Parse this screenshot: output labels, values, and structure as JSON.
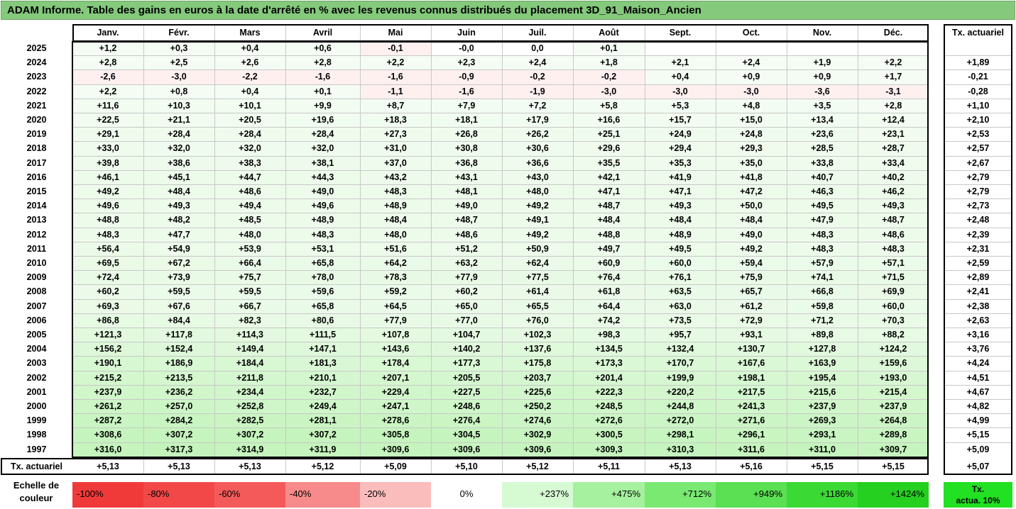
{
  "title": "ADAM Informe. Table des gains en euros à la date d'arrêté en % avec les revenus connus distribués du placement 3D_91_Maison_Ancien",
  "months": [
    "Janv.",
    "Févr.",
    "Mars",
    "Avril",
    "Mai",
    "Juin",
    "Juil.",
    "Août",
    "Sept.",
    "Oct.",
    "Nov.",
    "Déc."
  ],
  "tx_header": "Tx. actuariel",
  "rows": [
    {
      "year": "2025",
      "vals": [
        "+1,2",
        "+0,3",
        "+0,4",
        "+0,6",
        "-0,1",
        "-0,0",
        "0,0",
        "+0,1",
        "",
        "",
        "",
        ""
      ],
      "tx": ""
    },
    {
      "year": "2024",
      "vals": [
        "+2,8",
        "+2,5",
        "+2,6",
        "+2,8",
        "+2,2",
        "+2,3",
        "+2,4",
        "+1,8",
        "+2,1",
        "+2,4",
        "+1,9",
        "+2,2"
      ],
      "tx": "+1,89"
    },
    {
      "year": "2023",
      "vals": [
        "-2,6",
        "-3,0",
        "-2,2",
        "-1,6",
        "-1,6",
        "-0,9",
        "-0,2",
        "-0,2",
        "+0,4",
        "+0,9",
        "+0,9",
        "+1,7"
      ],
      "tx": "-0,21"
    },
    {
      "year": "2022",
      "vals": [
        "+2,2",
        "+0,8",
        "+0,4",
        "+0,1",
        "-1,1",
        "-1,6",
        "-1,9",
        "-3,0",
        "-3,0",
        "-3,0",
        "-3,6",
        "-3,1"
      ],
      "tx": "-0,28"
    },
    {
      "year": "2021",
      "vals": [
        "+11,6",
        "+10,3",
        "+10,1",
        "+9,9",
        "+8,7",
        "+7,9",
        "+7,2",
        "+5,8",
        "+5,3",
        "+4,8",
        "+3,5",
        "+2,8"
      ],
      "tx": "+1,10"
    },
    {
      "year": "2020",
      "vals": [
        "+22,5",
        "+21,1",
        "+20,5",
        "+19,6",
        "+18,3",
        "+18,1",
        "+17,9",
        "+16,6",
        "+15,7",
        "+15,0",
        "+13,4",
        "+12,4"
      ],
      "tx": "+2,10"
    },
    {
      "year": "2019",
      "vals": [
        "+29,1",
        "+28,4",
        "+28,4",
        "+28,4",
        "+27,3",
        "+26,8",
        "+26,2",
        "+25,1",
        "+24,9",
        "+24,8",
        "+23,6",
        "+23,1"
      ],
      "tx": "+2,53"
    },
    {
      "year": "2018",
      "vals": [
        "+33,0",
        "+32,0",
        "+32,0",
        "+32,0",
        "+31,0",
        "+30,8",
        "+30,6",
        "+29,6",
        "+29,4",
        "+29,3",
        "+28,5",
        "+28,7"
      ],
      "tx": "+2,57"
    },
    {
      "year": "2017",
      "vals": [
        "+39,8",
        "+38,6",
        "+38,3",
        "+38,1",
        "+37,0",
        "+36,8",
        "+36,6",
        "+35,5",
        "+35,3",
        "+35,0",
        "+33,8",
        "+33,4"
      ],
      "tx": "+2,67"
    },
    {
      "year": "2016",
      "vals": [
        "+46,1",
        "+45,1",
        "+44,7",
        "+44,3",
        "+43,2",
        "+43,1",
        "+43,0",
        "+42,1",
        "+41,9",
        "+41,8",
        "+40,7",
        "+40,2"
      ],
      "tx": "+2,79"
    },
    {
      "year": "2015",
      "vals": [
        "+49,2",
        "+48,4",
        "+48,6",
        "+49,0",
        "+48,3",
        "+48,1",
        "+48,0",
        "+47,1",
        "+47,1",
        "+47,2",
        "+46,3",
        "+46,2"
      ],
      "tx": "+2,79"
    },
    {
      "year": "2014",
      "vals": [
        "+49,6",
        "+49,3",
        "+49,4",
        "+49,6",
        "+48,9",
        "+49,0",
        "+49,2",
        "+48,7",
        "+49,3",
        "+50,0",
        "+49,5",
        "+49,3"
      ],
      "tx": "+2,73"
    },
    {
      "year": "2013",
      "vals": [
        "+48,8",
        "+48,2",
        "+48,5",
        "+48,9",
        "+48,4",
        "+48,7",
        "+49,1",
        "+48,4",
        "+48,4",
        "+48,4",
        "+47,9",
        "+48,7"
      ],
      "tx": "+2,48"
    },
    {
      "year": "2012",
      "vals": [
        "+48,3",
        "+47,7",
        "+48,0",
        "+48,3",
        "+48,0",
        "+48,6",
        "+49,2",
        "+48,8",
        "+48,9",
        "+49,0",
        "+48,3",
        "+48,6"
      ],
      "tx": "+2,39"
    },
    {
      "year": "2011",
      "vals": [
        "+56,4",
        "+54,9",
        "+53,9",
        "+53,1",
        "+51,6",
        "+51,2",
        "+50,9",
        "+49,7",
        "+49,5",
        "+49,2",
        "+48,3",
        "+48,3"
      ],
      "tx": "+2,31"
    },
    {
      "year": "2010",
      "vals": [
        "+69,5",
        "+67,2",
        "+66,4",
        "+65,8",
        "+64,2",
        "+63,2",
        "+62,4",
        "+60,9",
        "+60,0",
        "+59,4",
        "+57,9",
        "+57,1"
      ],
      "tx": "+2,59"
    },
    {
      "year": "2009",
      "vals": [
        "+72,4",
        "+73,9",
        "+75,7",
        "+78,0",
        "+78,3",
        "+77,9",
        "+77,5",
        "+76,4",
        "+76,1",
        "+75,9",
        "+74,1",
        "+71,5"
      ],
      "tx": "+2,89"
    },
    {
      "year": "2008",
      "vals": [
        "+60,2",
        "+59,5",
        "+59,5",
        "+59,6",
        "+59,2",
        "+60,2",
        "+61,4",
        "+61,8",
        "+63,5",
        "+65,7",
        "+66,8",
        "+69,9"
      ],
      "tx": "+2,41"
    },
    {
      "year": "2007",
      "vals": [
        "+69,3",
        "+67,6",
        "+66,7",
        "+65,8",
        "+64,5",
        "+65,0",
        "+65,5",
        "+64,4",
        "+63,0",
        "+61,2",
        "+59,8",
        "+60,0"
      ],
      "tx": "+2,38"
    },
    {
      "year": "2006",
      "vals": [
        "+86,8",
        "+84,4",
        "+82,3",
        "+80,6",
        "+77,9",
        "+77,0",
        "+76,0",
        "+74,2",
        "+73,5",
        "+72,9",
        "+71,2",
        "+70,3"
      ],
      "tx": "+2,63"
    },
    {
      "year": "2005",
      "vals": [
        "+121,3",
        "+117,8",
        "+114,3",
        "+111,5",
        "+107,8",
        "+104,7",
        "+102,3",
        "+98,3",
        "+95,7",
        "+93,1",
        "+89,8",
        "+88,2"
      ],
      "tx": "+3,16"
    },
    {
      "year": "2004",
      "vals": [
        "+156,2",
        "+152,4",
        "+149,4",
        "+147,1",
        "+143,6",
        "+140,2",
        "+137,6",
        "+134,5",
        "+132,4",
        "+130,7",
        "+127,8",
        "+124,2"
      ],
      "tx": "+3,76"
    },
    {
      "year": "2003",
      "vals": [
        "+190,1",
        "+186,9",
        "+184,4",
        "+181,3",
        "+178,4",
        "+177,3",
        "+175,8",
        "+173,3",
        "+170,7",
        "+167,6",
        "+163,9",
        "+159,6"
      ],
      "tx": "+4,24"
    },
    {
      "year": "2002",
      "vals": [
        "+215,2",
        "+213,5",
        "+211,8",
        "+210,1",
        "+207,1",
        "+205,5",
        "+203,7",
        "+201,4",
        "+199,9",
        "+198,1",
        "+195,4",
        "+193,0"
      ],
      "tx": "+4,51"
    },
    {
      "year": "2001",
      "vals": [
        "+237,9",
        "+236,2",
        "+234,4",
        "+232,7",
        "+229,4",
        "+227,5",
        "+225,6",
        "+222,3",
        "+220,2",
        "+217,5",
        "+215,6",
        "+215,4"
      ],
      "tx": "+4,67"
    },
    {
      "year": "2000",
      "vals": [
        "+261,2",
        "+257,0",
        "+252,8",
        "+249,4",
        "+247,1",
        "+248,6",
        "+250,2",
        "+248,5",
        "+244,8",
        "+241,3",
        "+237,9",
        "+237,9"
      ],
      "tx": "+4,82"
    },
    {
      "year": "1999",
      "vals": [
        "+287,2",
        "+284,2",
        "+282,5",
        "+281,1",
        "+278,6",
        "+276,4",
        "+274,6",
        "+272,6",
        "+272,0",
        "+271,6",
        "+269,3",
        "+264,8"
      ],
      "tx": "+4,99"
    },
    {
      "year": "1998",
      "vals": [
        "+308,6",
        "+307,2",
        "+307,2",
        "+307,2",
        "+305,8",
        "+304,5",
        "+302,9",
        "+300,5",
        "+298,1",
        "+296,1",
        "+293,1",
        "+289,8"
      ],
      "tx": "+5,15"
    },
    {
      "year": "1997",
      "vals": [
        "+316,0",
        "+317,3",
        "+314,9",
        "+311,9",
        "+309,6",
        "+309,6",
        "+309,6",
        "+309,3",
        "+310,3",
        "+311,6",
        "+311,0",
        "+309,7"
      ],
      "tx": "+5,09"
    }
  ],
  "footer": {
    "label": "Tx. actuariel",
    "vals": [
      "+5,13",
      "+5,13",
      "+5,13",
      "+5,12",
      "+5,09",
      "+5,10",
      "+5,12",
      "+5,11",
      "+5,13",
      "+5,16",
      "+5,15",
      "+5,15"
    ],
    "tx": "+5,07"
  },
  "legend": {
    "label_line1": "Echelle de",
    "label_line2": "couleur",
    "items": [
      {
        "text": "-100%",
        "color": "#f03a3a",
        "align": "left"
      },
      {
        "text": "-80%",
        "color": "#f24848",
        "align": "left"
      },
      {
        "text": "-60%",
        "color": "#f45a5a",
        "align": "left"
      },
      {
        "text": "-40%",
        "color": "#f78a8a",
        "align": "left"
      },
      {
        "text": "-20%",
        "color": "#fbbcbc",
        "align": "left"
      },
      {
        "text": "0%",
        "color": "#ffffff",
        "align": "center"
      },
      {
        "text": "+237%",
        "color": "#d6fbd3",
        "align": "right"
      },
      {
        "text": "+475%",
        "color": "#a6f19f",
        "align": "right"
      },
      {
        "text": "+712%",
        "color": "#7ae972",
        "align": "right"
      },
      {
        "text": "+949%",
        "color": "#5ae052",
        "align": "right"
      },
      {
        "text": "+1186%",
        "color": "#3bd934",
        "align": "right"
      },
      {
        "text": "+1424%",
        "color": "#25d020",
        "align": "right"
      }
    ],
    "tx_line1": "Tx.",
    "tx_line2": "actua. 10%",
    "tx_color": "#22e022"
  }
}
